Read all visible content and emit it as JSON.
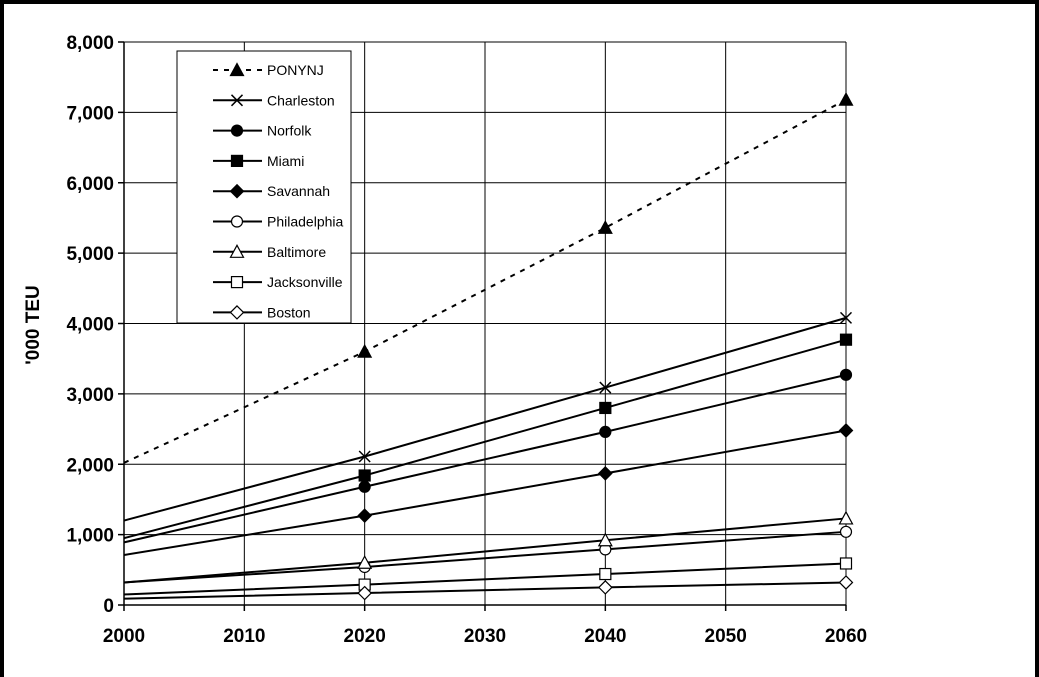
{
  "chart_data": {
    "type": "line",
    "title": "",
    "xlabel": "",
    "ylabel": "'000 TEU",
    "x": [
      2000,
      2020,
      2040,
      2060
    ],
    "xlim": [
      2000,
      2060
    ],
    "ylim": [
      0,
      8000
    ],
    "x_ticks": [
      "2000",
      "2010",
      "2020",
      "2030",
      "2040",
      "2050",
      "2060"
    ],
    "y_ticks": [
      "0",
      "1,000",
      "2,000",
      "3,000",
      "4,000",
      "5,000",
      "6,000",
      "7,000",
      "8,000"
    ],
    "grid": true,
    "legend_position": "top-left",
    "series": [
      {
        "name": "PONYNJ",
        "marker": "filled-triangle",
        "dashed": true,
        "values": [
          2020,
          3600,
          5360,
          7180
        ]
      },
      {
        "name": "Charleston",
        "marker": "x",
        "dashed": false,
        "values": [
          1200,
          2110,
          3090,
          4080
        ]
      },
      {
        "name": "Norfolk",
        "marker": "filled-circle",
        "dashed": false,
        "values": [
          890,
          1680,
          2460,
          3270
        ]
      },
      {
        "name": "Miami",
        "marker": "filled-square",
        "dashed": false,
        "values": [
          950,
          1840,
          2800,
          3770
        ]
      },
      {
        "name": "Savannah",
        "marker": "filled-diamond",
        "dashed": false,
        "values": [
          710,
          1270,
          1870,
          2480
        ]
      },
      {
        "name": "Philadelphia",
        "marker": "open-circle",
        "dashed": false,
        "values": [
          320,
          540,
          790,
          1040
        ]
      },
      {
        "name": "Baltimore",
        "marker": "open-triangle",
        "dashed": false,
        "values": [
          320,
          600,
          920,
          1230
        ]
      },
      {
        "name": "Jacksonville",
        "marker": "open-square",
        "dashed": false,
        "values": [
          150,
          290,
          440,
          590
        ]
      },
      {
        "name": "Boston",
        "marker": "open-diamond",
        "dashed": false,
        "values": [
          90,
          170,
          250,
          320
        ]
      }
    ]
  }
}
